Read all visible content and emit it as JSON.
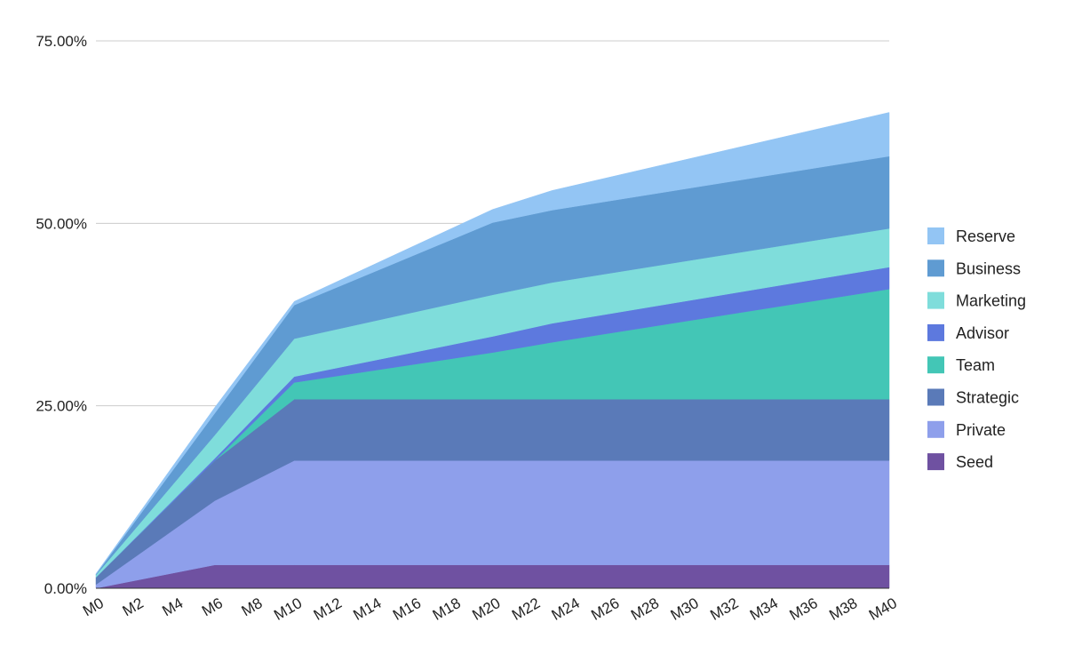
{
  "chart_data": {
    "type": "area",
    "stacked": true,
    "title": "",
    "xlabel": "",
    "ylabel": "",
    "ylim": [
      0,
      75
    ],
    "y_ticks": [
      "0.00%",
      "25.00%",
      "50.00%",
      "75.00%"
    ],
    "y_tick_values": [
      0,
      25,
      50,
      75
    ],
    "x_tick_labels": [
      "M0",
      "M2",
      "M4",
      "M6",
      "M8",
      "M10",
      "M12",
      "M14",
      "M16",
      "M18",
      "M20",
      "M22",
      "M24",
      "M26",
      "M28",
      "M30",
      "M32",
      "M34",
      "M36",
      "M38",
      "M40"
    ],
    "x": [
      0,
      6,
      10,
      20,
      23,
      40
    ],
    "grid": true,
    "legend_position": "right",
    "series": [
      {
        "name": "Seed",
        "color": "#6f51a1",
        "values": [
          0.0,
          3.2,
          3.2,
          3.2,
          3.2,
          3.2
        ]
      },
      {
        "name": "Private",
        "color": "#8e9feb",
        "values": [
          0.5,
          8.8,
          14.3,
          14.3,
          14.3,
          14.3
        ]
      },
      {
        "name": "Strategic",
        "color": "#5a7ab8",
        "values": [
          1.0,
          5.5,
          8.4,
          8.4,
          8.4,
          8.4
        ]
      },
      {
        "name": "Team",
        "color": "#43c6b6",
        "values": [
          0.0,
          0.0,
          2.3,
          6.4,
          7.8,
          15.1
        ]
      },
      {
        "name": "Advisor",
        "color": "#5d79de",
        "values": [
          0.0,
          0.3,
          0.8,
          2.2,
          2.6,
          3.0
        ]
      },
      {
        "name": "Marketing",
        "color": "#7fdddb",
        "values": [
          0.3,
          3.2,
          5.2,
          5.7,
          5.6,
          5.3
        ]
      },
      {
        "name": "Business",
        "color": "#5f9bd2",
        "values": [
          0.1,
          3.0,
          4.6,
          9.9,
          9.9,
          9.9
        ]
      },
      {
        "name": "Reserve",
        "color": "#93c5f4",
        "values": [
          0.1,
          0.8,
          0.5,
          1.8,
          2.7,
          6.0
        ]
      }
    ],
    "legend_order": [
      "Reserve",
      "Business",
      "Marketing",
      "Advisor",
      "Team",
      "Strategic",
      "Private",
      "Seed"
    ]
  }
}
